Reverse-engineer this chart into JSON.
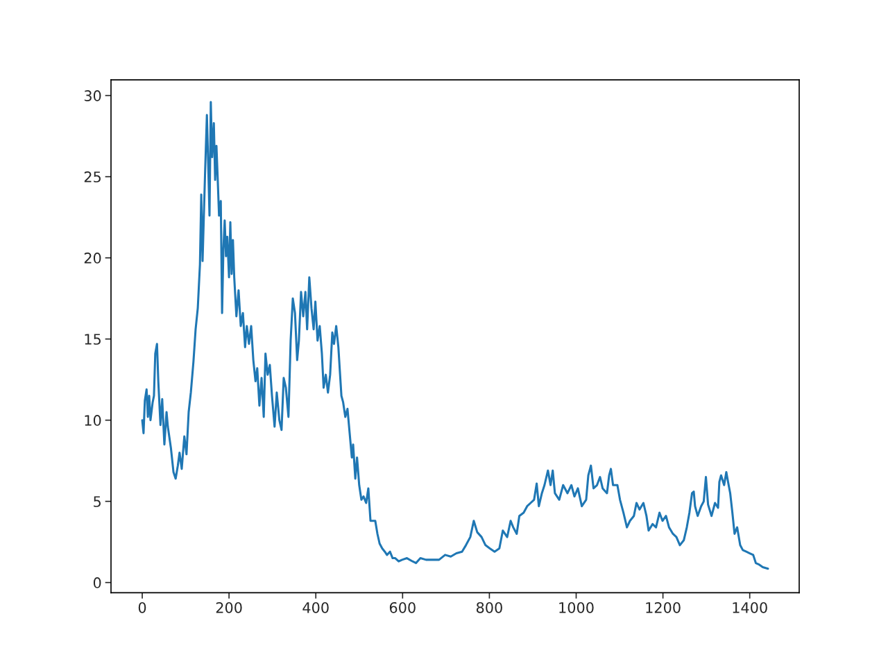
{
  "chart_data": {
    "type": "line",
    "x": [
      0,
      3,
      6,
      10,
      13,
      16,
      19,
      24,
      27,
      30,
      34,
      37,
      42,
      46,
      51,
      56,
      59,
      66,
      72,
      77,
      82,
      86,
      91,
      97,
      102,
      107,
      112,
      118,
      123,
      128,
      133,
      136,
      139,
      142,
      145,
      149,
      152,
      155,
      158,
      161,
      165,
      168,
      171,
      174,
      177,
      181,
      184,
      187,
      190,
      193,
      196,
      200,
      203,
      206,
      209,
      212,
      217,
      222,
      227,
      232,
      237,
      241,
      246,
      251,
      256,
      261,
      265,
      270,
      275,
      280,
      284,
      289,
      294,
      299,
      305,
      310,
      316,
      321,
      326,
      331,
      337,
      342,
      347,
      352,
      357,
      361,
      366,
      371,
      376,
      380,
      385,
      390,
      395,
      399,
      404,
      409,
      414,
      418,
      423,
      428,
      433,
      438,
      442,
      447,
      452,
      455,
      459,
      463,
      468,
      473,
      478,
      483,
      486,
      491,
      495,
      500,
      505,
      510,
      516,
      521,
      526,
      530,
      537,
      542,
      547,
      553,
      559,
      564,
      571,
      577,
      583,
      591,
      599,
      610,
      623,
      631,
      641,
      654,
      666,
      684,
      698,
      711,
      724,
      737,
      746,
      756,
      764,
      772,
      782,
      791,
      801,
      812,
      823,
      831,
      841,
      849,
      855,
      863,
      869,
      879,
      887,
      895,
      903,
      909,
      914,
      921,
      927,
      935,
      941,
      946,
      951,
      961,
      970,
      980,
      989,
      996,
      1004,
      1013,
      1023,
      1028,
      1034,
      1040,
      1048,
      1055,
      1061,
      1071,
      1076,
      1080,
      1085,
      1095,
      1101,
      1109,
      1117,
      1124,
      1133,
      1139,
      1146,
      1155,
      1162,
      1167,
      1176,
      1184,
      1192,
      1199,
      1207,
      1214,
      1223,
      1231,
      1239,
      1248,
      1255,
      1261,
      1267,
      1271,
      1274,
      1280,
      1288,
      1294,
      1299,
      1304,
      1312,
      1320,
      1327,
      1330,
      1334,
      1341,
      1346,
      1350,
      1355,
      1360,
      1365,
      1371,
      1378,
      1384,
      1392,
      1400,
      1408,
      1414,
      1422,
      1430,
      1442
    ],
    "series": [
      {
        "color": "#1f77b4",
        "values": [
          10.0,
          9.2,
          11.2,
          11.9,
          10.2,
          11.5,
          10.0,
          11.1,
          11.5,
          14.1,
          14.7,
          12.4,
          9.7,
          11.3,
          8.5,
          10.5,
          9.6,
          8.3,
          6.8,
          6.4,
          7.2,
          8.0,
          7.0,
          9.0,
          7.9,
          10.5,
          11.7,
          13.6,
          15.6,
          16.9,
          19.6,
          23.9,
          19.8,
          22.6,
          25.4,
          28.8,
          25.8,
          22.6,
          29.6,
          26.2,
          28.3,
          24.8,
          26.9,
          24.8,
          22.6,
          23.5,
          16.6,
          20.5,
          22.3,
          20.1,
          21.3,
          18.8,
          22.2,
          19.0,
          21.1,
          18.8,
          16.4,
          18.0,
          15.8,
          16.6,
          14.5,
          15.8,
          14.7,
          15.8,
          13.7,
          12.4,
          13.2,
          10.9,
          12.6,
          10.2,
          14.1,
          12.8,
          13.4,
          11.5,
          9.6,
          11.7,
          10.0,
          9.4,
          12.6,
          12.0,
          10.2,
          14.9,
          17.5,
          16.6,
          13.7,
          14.9,
          17.9,
          16.4,
          17.9,
          15.6,
          18.8,
          16.9,
          15.6,
          17.3,
          14.9,
          15.8,
          14.1,
          12.0,
          12.8,
          11.7,
          12.8,
          15.4,
          14.7,
          15.8,
          14.5,
          13.2,
          11.5,
          11.1,
          10.2,
          10.7,
          9.2,
          7.7,
          8.5,
          6.4,
          7.7,
          6.0,
          5.1,
          5.3,
          4.9,
          5.8,
          3.8,
          3.8,
          3.8,
          3.0,
          2.4,
          2.1,
          1.9,
          1.7,
          1.9,
          1.5,
          1.5,
          1.3,
          1.4,
          1.5,
          1.3,
          1.2,
          1.5,
          1.4,
          1.4,
          1.4,
          1.7,
          1.6,
          1.8,
          1.9,
          2.3,
          2.8,
          3.8,
          3.1,
          2.8,
          2.3,
          2.1,
          1.9,
          2.1,
          3.2,
          2.8,
          3.8,
          3.4,
          3.0,
          4.1,
          4.3,
          4.7,
          4.9,
          5.1,
          6.1,
          4.7,
          5.5,
          6.0,
          6.9,
          6.0,
          6.9,
          5.5,
          5.1,
          6.0,
          5.5,
          6.0,
          5.3,
          5.8,
          4.7,
          5.1,
          6.6,
          7.2,
          5.8,
          6.0,
          6.5,
          5.8,
          5.5,
          6.6,
          7.0,
          6.0,
          6.0,
          5.1,
          4.3,
          3.4,
          3.8,
          4.1,
          4.9,
          4.5,
          4.9,
          4.1,
          3.2,
          3.6,
          3.4,
          4.3,
          3.8,
          4.1,
          3.4,
          3.0,
          2.8,
          2.3,
          2.6,
          3.4,
          4.3,
          5.5,
          5.6,
          4.7,
          4.1,
          4.7,
          5.0,
          6.5,
          4.8,
          4.1,
          4.9,
          4.6,
          6.2,
          6.6,
          6.0,
          6.8,
          6.2,
          5.5,
          4.3,
          3.0,
          3.4,
          2.3,
          2.0,
          1.9,
          1.8,
          1.7,
          1.2,
          1.1,
          0.95,
          0.85
        ]
      }
    ],
    "xlim": [
      -72,
      1514
    ],
    "ylim": [
      -0.63,
      30.96
    ],
    "xticks": [
      0,
      200,
      400,
      600,
      800,
      1000,
      1200,
      1400
    ],
    "yticks": [
      0,
      5,
      10,
      15,
      20,
      25,
      30
    ],
    "grid": false,
    "legend": false
  }
}
